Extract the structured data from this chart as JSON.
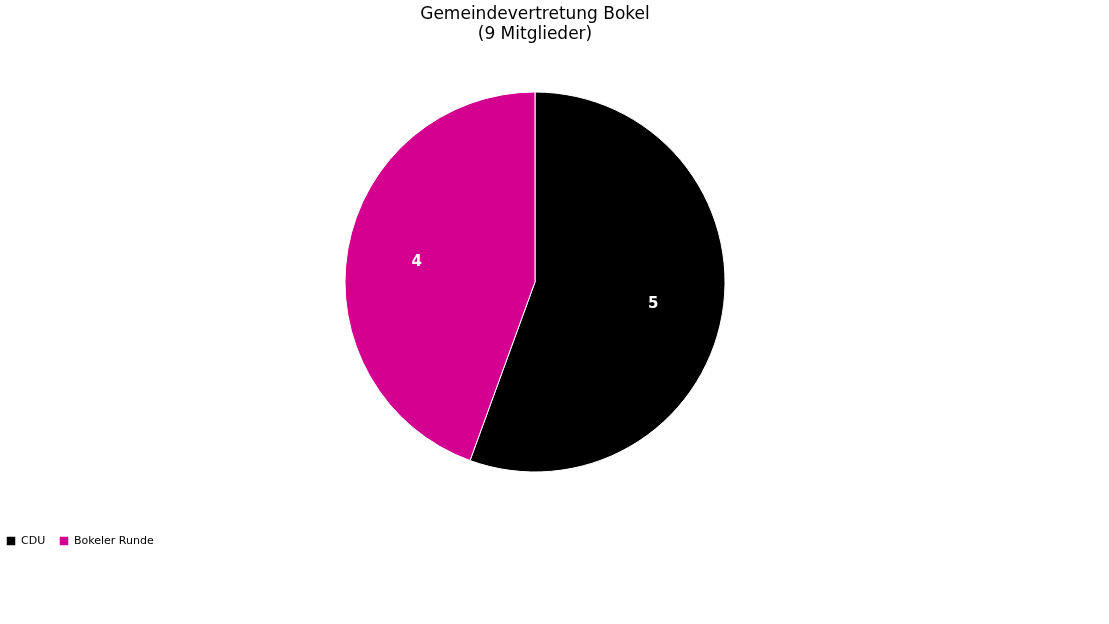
{
  "chart_data": {
    "type": "pie",
    "title": "Gemeindevertretung Bokel",
    "subtitle": "(9 Mitglieder)",
    "categories": [
      "CDU",
      "Bokeler Runde"
    ],
    "values": [
      5,
      4
    ],
    "colors": [
      "#000000",
      "#d4008f"
    ],
    "data_labels": true,
    "legend": "bottom"
  }
}
